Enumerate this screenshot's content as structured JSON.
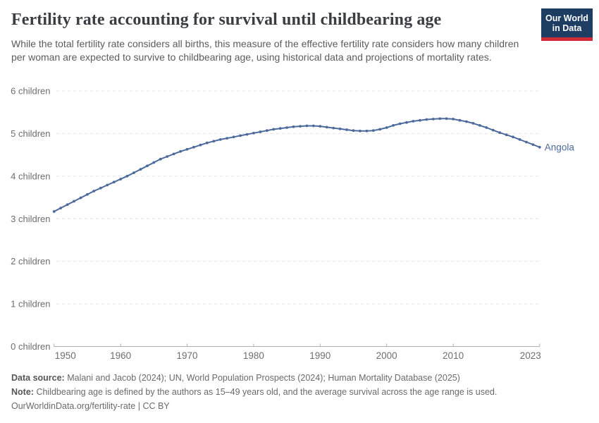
{
  "header": {
    "title": "Fertility rate accounting for survival until childbearing age",
    "subtitle": "While the total fertility rate considers all births, this measure of the effective fertility rate considers how many children per woman are expected to survive to childbearing age, using historical data and projections of mortality rates.",
    "logo": {
      "line1": "Our World",
      "line2": "in Data"
    }
  },
  "colors": {
    "line": "#4C6A9C",
    "grid": "#e2e2e2",
    "axis": "#b0b0b0",
    "tick_text": "#6e6e6e",
    "logo_bg": "#1d3d63",
    "logo_accent": "#ce2b37"
  },
  "chart_data": {
    "type": "line",
    "title": "Fertility rate accounting for survival until childbearing age",
    "xlabel": "",
    "ylabel": "",
    "xlim": [
      1950,
      2023
    ],
    "ylim": [
      0,
      6
    ],
    "grid": "dashed-horizontal",
    "legend_position": "end-of-line",
    "x_ticks": [
      1950,
      1960,
      1970,
      1980,
      1990,
      2000,
      2010,
      2023
    ],
    "y_ticks": [
      0,
      1,
      2,
      3,
      4,
      5,
      6
    ],
    "y_tick_labels": [
      "0 children",
      "1 children",
      "2 children",
      "3 children",
      "4 children",
      "5 children",
      "6 children"
    ],
    "series": [
      {
        "name": "Angola",
        "end_label": "Angola",
        "x": [
          1950,
          1951,
          1952,
          1953,
          1954,
          1955,
          1956,
          1957,
          1958,
          1959,
          1960,
          1961,
          1962,
          1963,
          1964,
          1965,
          1966,
          1967,
          1968,
          1969,
          1970,
          1971,
          1972,
          1973,
          1974,
          1975,
          1976,
          1977,
          1978,
          1979,
          1980,
          1981,
          1982,
          1983,
          1984,
          1985,
          1986,
          1987,
          1988,
          1989,
          1990,
          1991,
          1992,
          1993,
          1994,
          1995,
          1996,
          1997,
          1998,
          1999,
          2000,
          2001,
          2002,
          2003,
          2004,
          2005,
          2006,
          2007,
          2008,
          2009,
          2010,
          2011,
          2012,
          2013,
          2014,
          2015,
          2016,
          2017,
          2018,
          2019,
          2020,
          2021,
          2022,
          2023
        ],
        "values": [
          3.17,
          3.25,
          3.33,
          3.41,
          3.49,
          3.57,
          3.65,
          3.72,
          3.79,
          3.86,
          3.93,
          4.0,
          4.08,
          4.16,
          4.24,
          4.32,
          4.4,
          4.46,
          4.52,
          4.58,
          4.63,
          4.68,
          4.73,
          4.78,
          4.82,
          4.86,
          4.89,
          4.92,
          4.95,
          4.98,
          5.01,
          5.04,
          5.07,
          5.1,
          5.12,
          5.14,
          5.16,
          5.17,
          5.18,
          5.18,
          5.17,
          5.15,
          5.13,
          5.11,
          5.09,
          5.07,
          5.06,
          5.06,
          5.07,
          5.1,
          5.14,
          5.19,
          5.23,
          5.26,
          5.29,
          5.31,
          5.33,
          5.34,
          5.35,
          5.35,
          5.34,
          5.31,
          5.28,
          5.24,
          5.19,
          5.14,
          5.08,
          5.02,
          4.97,
          4.92,
          4.86,
          4.8,
          4.74,
          4.68
        ]
      }
    ]
  },
  "footer": {
    "data_source_label": "Data source:",
    "data_source": "Malani and Jacob (2024); UN, World Population Prospects (2024); Human Mortality Database (2025)",
    "note_label": "Note:",
    "note": "Childbearing age is defined by the authors as 15–49 years old, and the average survival across the age range is used.",
    "url": "OurWorldinData.org/fertility-rate",
    "separator": "|",
    "license": "CC BY"
  }
}
